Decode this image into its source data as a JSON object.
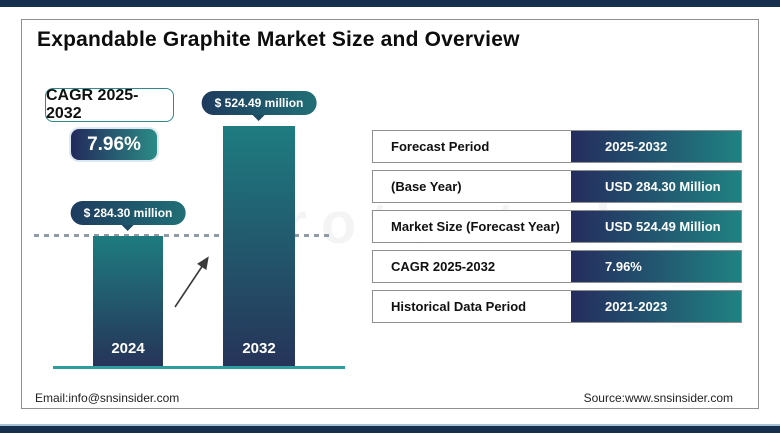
{
  "page": {
    "title": "Expandable Graphite Market Size and Overview",
    "watermark": "protected"
  },
  "colors": {
    "accent_navy": "#16304d",
    "gradient_navy": "#252c5e",
    "gradient_teal": "#1f8282",
    "bar_top_teal": "#1e7c80",
    "bar_bottom_navy": "#263459",
    "baseline_teal": "#2e9da1"
  },
  "cagr": {
    "label": "CAGR 2025-2032",
    "value": "7.96%"
  },
  "chart_data": {
    "type": "bar",
    "title": "Expandable Graphite Market Size and Overview",
    "categories": [
      "2024",
      "2032"
    ],
    "values": [
      284.3,
      524.49
    ],
    "value_labels": [
      "$ 284.30 million",
      "$ 524.49 million"
    ],
    "unit": "USD million",
    "xlabel": "",
    "ylabel": "",
    "ylim": [
      0,
      560
    ],
    "grid": false,
    "legend": false,
    "annotations": [
      "CAGR 2025-2032: 7.96%",
      "dashed reference line at 2024 level",
      "growth arrow between bars"
    ]
  },
  "table": {
    "rows": [
      {
        "label": "Forecast Period",
        "value": "2025-2032"
      },
      {
        "label": "(Base Year)",
        "value": "USD 284.30 Million"
      },
      {
        "label": "Market Size (Forecast Year)",
        "value": "USD 524.49 Million"
      },
      {
        "label": "CAGR 2025-2032",
        "value": "7.96%"
      },
      {
        "label": "Historical Data Period",
        "value": "2021-2023"
      }
    ]
  },
  "footer": {
    "email": "Email:info@snsinsider.com",
    "source": "Source:www.snsinsider.com"
  }
}
